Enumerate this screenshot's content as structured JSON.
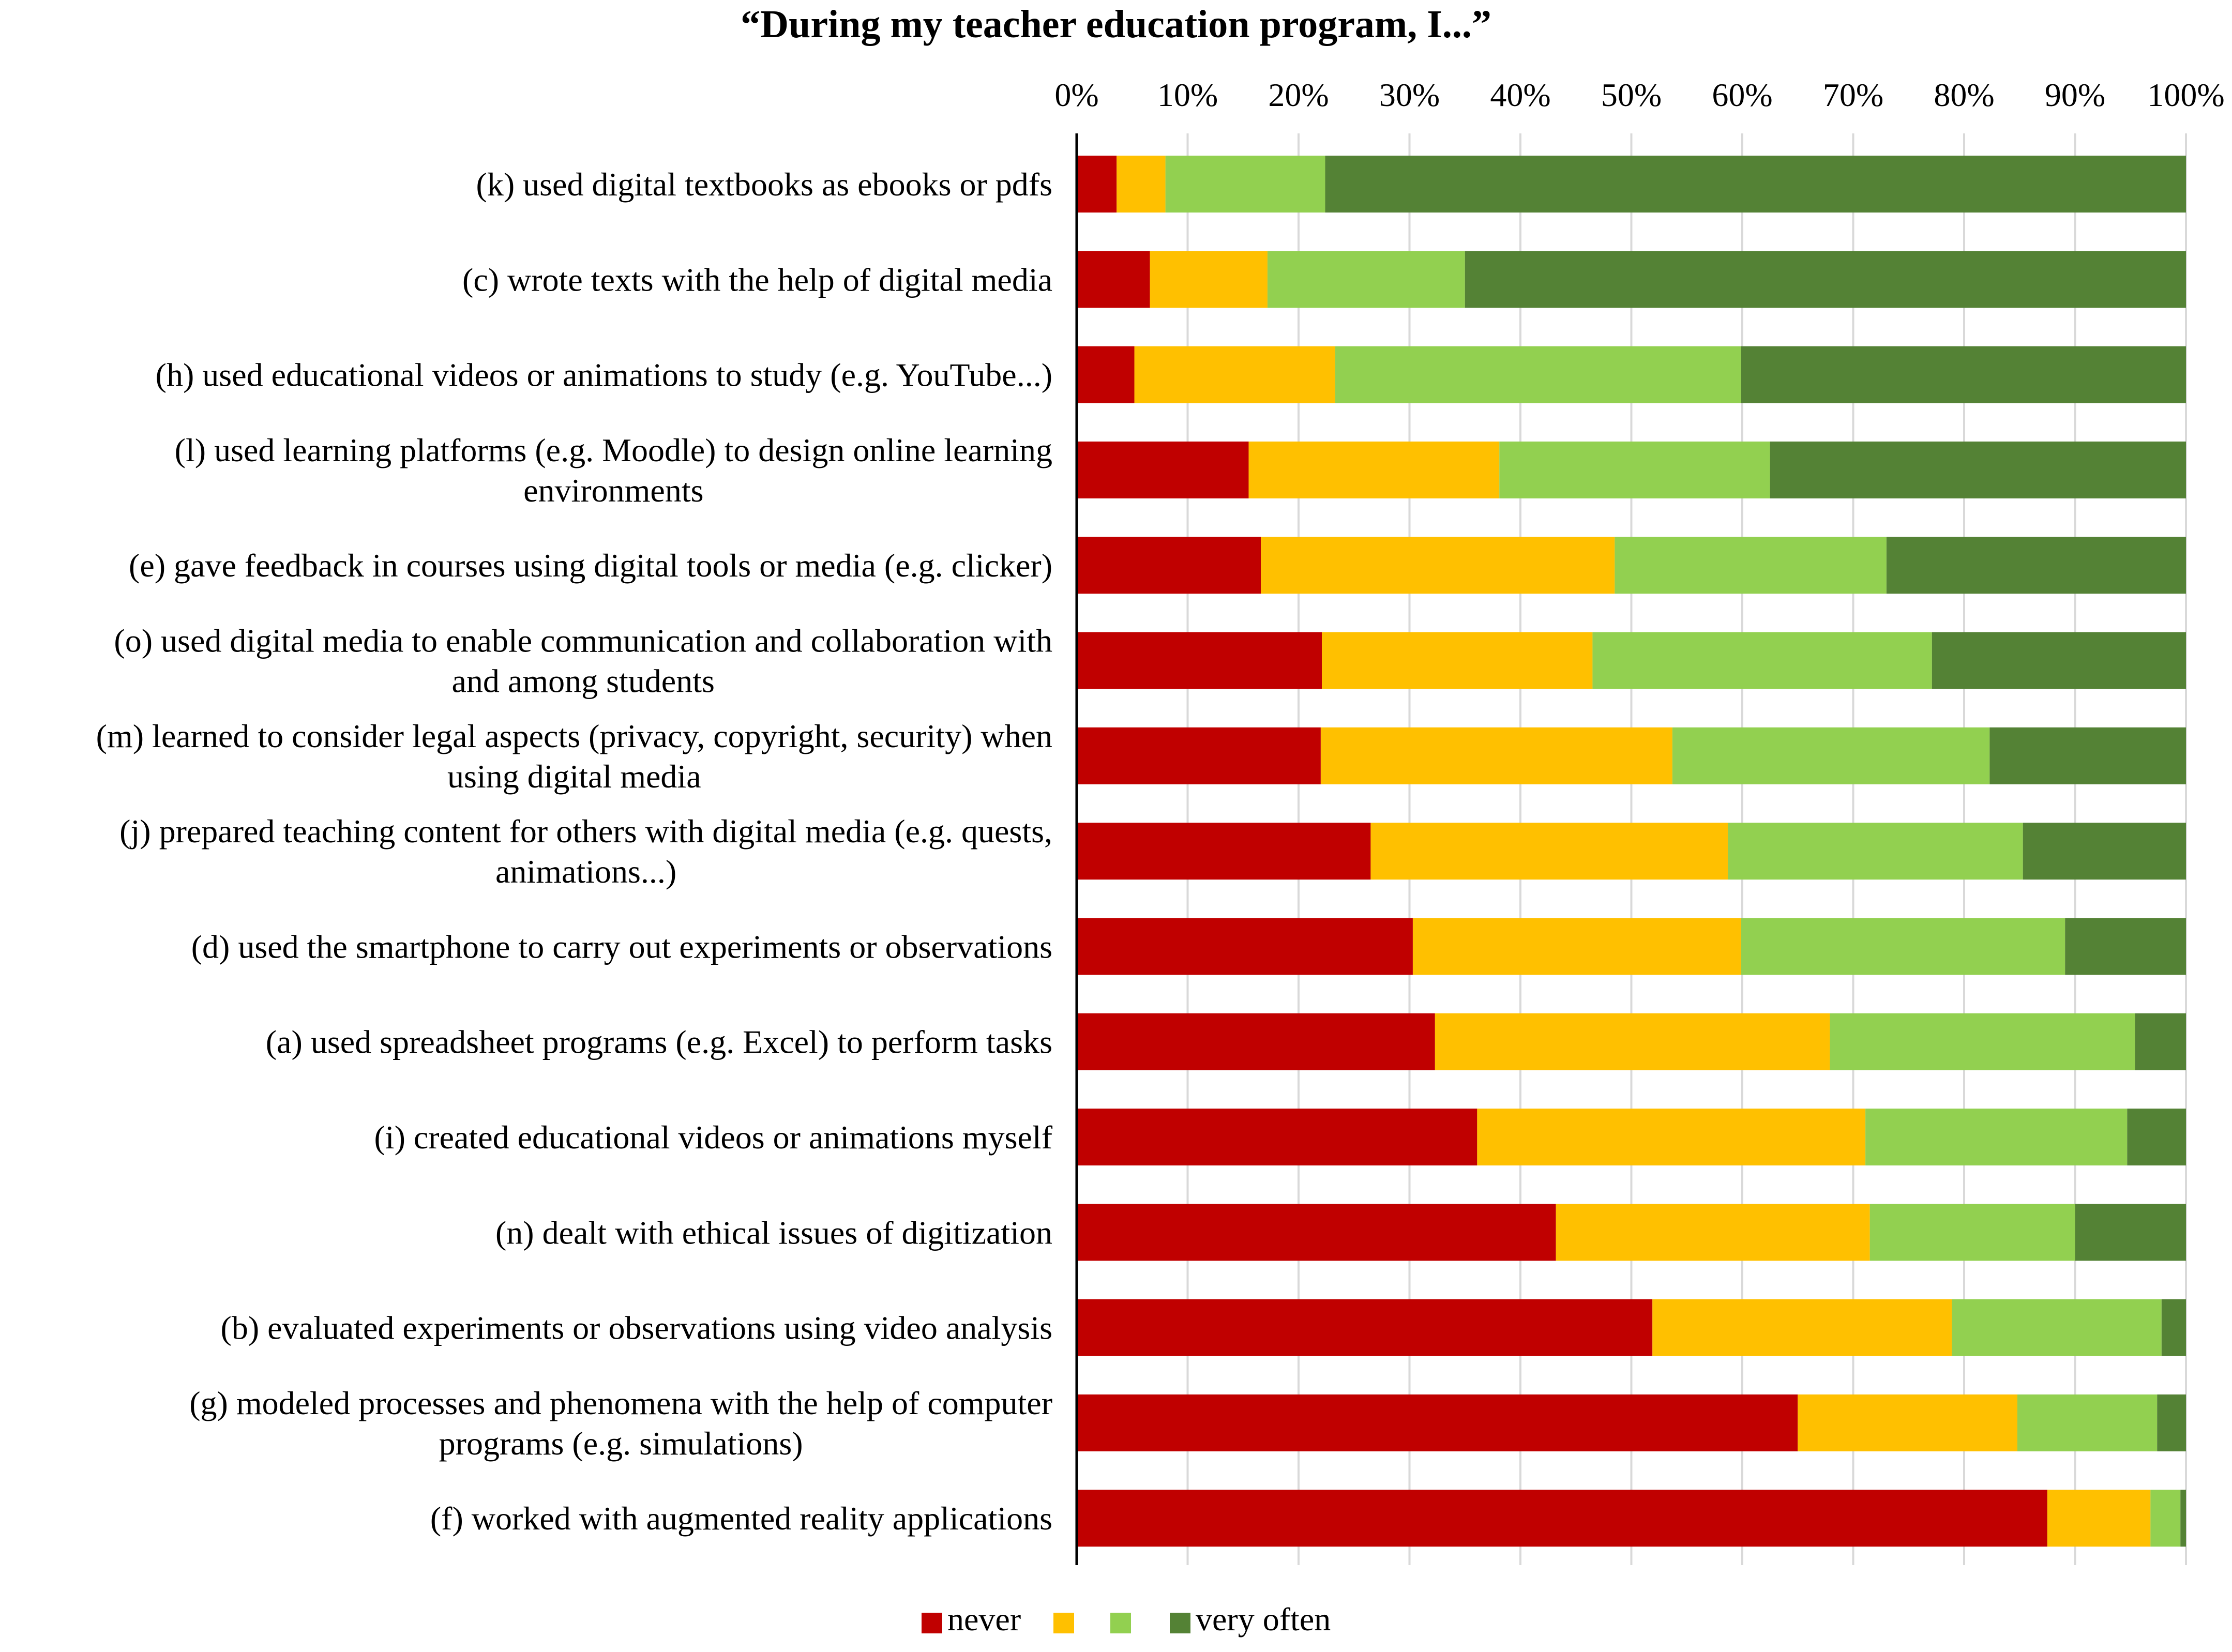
{
  "chart_data": {
    "type": "bar",
    "orientation": "horizontal",
    "stacked": "percent",
    "title": "“During my teacher education program, I...”",
    "xlabel": "",
    "ylabel": "",
    "xlim": [
      0,
      100
    ],
    "xtick_labels": [
      "0%",
      "10%",
      "20%",
      "30%",
      "40%",
      "50%",
      "60%",
      "70%",
      "80%",
      "90%",
      "100%"
    ],
    "x_axis_position": "top",
    "grid": "vertical",
    "legend_placement": "bottom-center",
    "categories": [
      [
        "(k) used digital textbooks as ebooks or pdfs"
      ],
      [
        "(c) wrote texts with the help of digital media"
      ],
      [
        "(h) used educational videos or animations to study (e.g. YouTube...)"
      ],
      [
        "(l) used learning platforms (e.g. Moodle) to design online learning",
        "environments"
      ],
      [
        "(e) gave feedback in courses using digital tools or media (e.g. clicker)"
      ],
      [
        "(o) used digital media to enable communication and collaboration with",
        "and among students"
      ],
      [
        "(m) learned to consider legal aspects (privacy, copyright, security) when",
        "using digital media"
      ],
      [
        "(j) prepared teaching content for others with digital media (e.g. quests,",
        "animations...)"
      ],
      [
        "(d) used the smartphone to carry out experiments or observations"
      ],
      [
        "(a) used spreadsheet programs (e.g. Excel) to perform tasks"
      ],
      [
        "(i) created educational videos or animations myself"
      ],
      [
        "(n) dealt with ethical issues of digitization"
      ],
      [
        "(b) evaluated experiments or observations using video analysis"
      ],
      [
        "(g) modeled processes and phenomena with the help of computer",
        "programs (e.g. simulations)"
      ],
      [
        "(f) worked with augmented reality applications"
      ]
    ],
    "series": [
      {
        "name": "never",
        "color": "#C00000",
        "values": [
          3.6,
          6.6,
          5.2,
          15.5,
          16.6,
          22.1,
          22.0,
          26.5,
          30.3,
          32.3,
          36.1,
          43.2,
          51.9,
          65.0,
          87.5
        ]
      },
      {
        "name": "",
        "color": "#FFC000",
        "values": [
          4.4,
          10.6,
          18.1,
          22.6,
          31.9,
          24.4,
          31.7,
          32.2,
          29.6,
          35.6,
          35.0,
          28.3,
          27.0,
          19.8,
          9.3
        ]
      },
      {
        "name": "",
        "color": "#92D050",
        "values": [
          14.4,
          17.8,
          36.6,
          24.4,
          24.5,
          30.6,
          28.6,
          26.6,
          29.2,
          27.5,
          23.6,
          18.5,
          18.9,
          12.6,
          2.7
        ]
      },
      {
        "name": "very often",
        "color": "#548235",
        "values": [
          77.6,
          65.0,
          40.1,
          37.5,
          27.0,
          22.9,
          17.7,
          14.7,
          10.9,
          4.6,
          5.3,
          10.0,
          2.2,
          2.6,
          0.5
        ]
      }
    ]
  }
}
